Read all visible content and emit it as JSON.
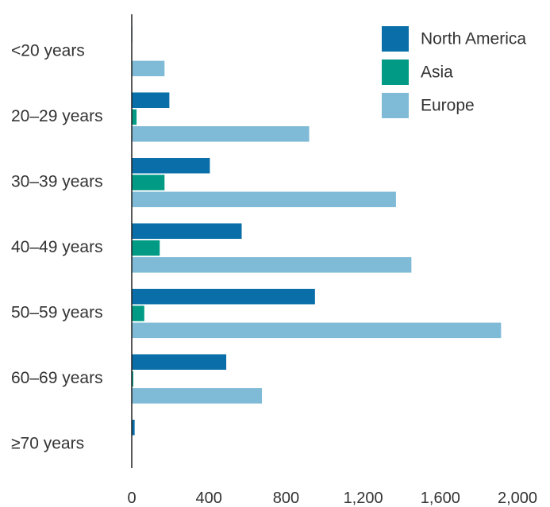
{
  "chart_data": {
    "type": "bar",
    "orientation": "horizontal",
    "title": "",
    "xlabel": "",
    "ylabel": "",
    "categories": [
      "<20 years",
      "20–29 years",
      "30–39 years",
      "40–49 years",
      "50–59 years",
      "60–69 years",
      "≥70 years"
    ],
    "series": [
      {
        "name": "North America",
        "color": "#0a6fa8",
        "values": [
          3,
          195,
          405,
          570,
          950,
          490,
          15
        ]
      },
      {
        "name": "Asia",
        "color": "#009a85",
        "values": [
          2,
          25,
          170,
          145,
          65,
          8,
          2
        ]
      },
      {
        "name": "Europe",
        "color": "#7fbad6",
        "values": [
          170,
          920,
          1370,
          1450,
          1915,
          675,
          0
        ]
      }
    ],
    "xlim": [
      0,
      2000
    ],
    "xticks": [
      0,
      400,
      800,
      1200,
      1600,
      2000
    ],
    "xtick_labels": [
      "0",
      "400",
      "800",
      "1,200",
      "1,600",
      "2,000"
    ],
    "grid": false,
    "legend_position": "top-right"
  }
}
